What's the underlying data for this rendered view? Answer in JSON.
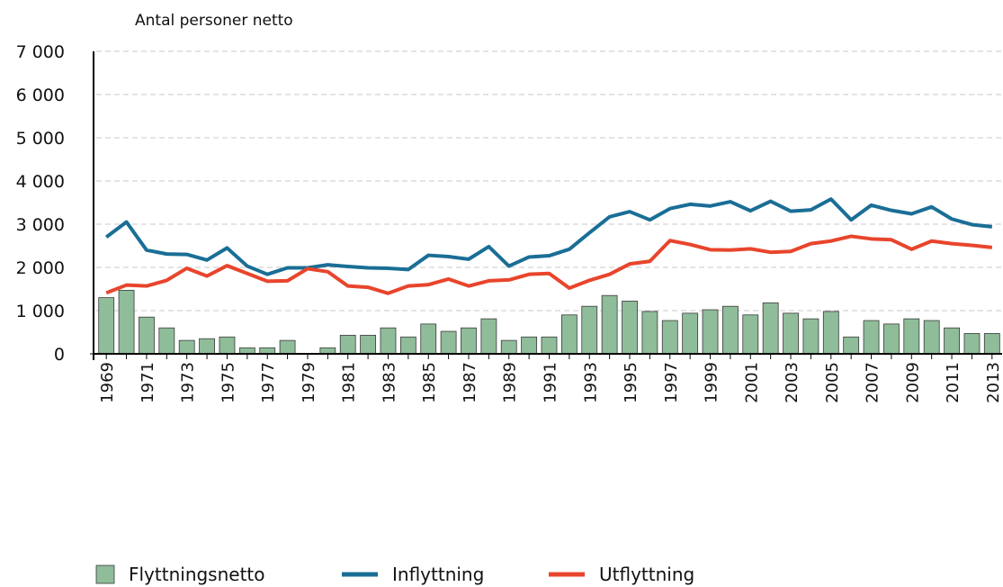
{
  "chart_data": {
    "type": "bar",
    "y_label": "Antal personer netto",
    "categories": [
      "1969",
      null,
      "1971",
      null,
      "1973",
      null,
      "1975",
      null,
      "1977",
      null,
      "1979",
      null,
      "1981",
      null,
      "1983",
      null,
      "1985",
      null,
      "1987",
      null,
      "1989",
      null,
      "1991",
      null,
      "1993",
      null,
      "1995",
      null,
      "1997",
      null,
      "1999",
      null,
      "2001",
      null,
      "2003",
      null,
      "2005",
      null,
      "2007",
      null,
      "2009",
      null,
      "2011",
      null,
      "2013"
    ],
    "series": [
      {
        "name": "Flyttningsnetto",
        "type": "bar",
        "color": "#8fbc99",
        "values": [
          1300,
          1470,
          850,
          600,
          310,
          350,
          390,
          140,
          140,
          310,
          0,
          140,
          430,
          430,
          600,
          390,
          690,
          520,
          600,
          810,
          310,
          390,
          390,
          900,
          1100,
          1350,
          1220,
          980,
          770,
          940,
          1020,
          1100,
          900,
          1180,
          940,
          810,
          980,
          390,
          770,
          690,
          810,
          770,
          600,
          470,
          470
        ]
      },
      {
        "name": "Inflyttning",
        "type": "line",
        "color": "#1a6e96",
        "values": [
          2700,
          3050,
          2400,
          2310,
          2300,
          2170,
          2450,
          2030,
          1840,
          1990,
          1990,
          2060,
          2020,
          1990,
          1980,
          1950,
          2280,
          2250,
          2190,
          2480,
          2030,
          2240,
          2270,
          2420,
          2800,
          3170,
          3290,
          3100,
          3360,
          3460,
          3420,
          3520,
          3310,
          3530,
          3300,
          3330,
          3580,
          3100,
          3440,
          3320,
          3240,
          3400,
          3120,
          2990,
          2940
        ]
      },
      {
        "name": "Utflyttning",
        "type": "line",
        "color": "#e8452c",
        "values": [
          1410,
          1590,
          1570,
          1700,
          1980,
          1800,
          2040,
          1860,
          1680,
          1690,
          1970,
          1900,
          1570,
          1540,
          1400,
          1570,
          1600,
          1730,
          1570,
          1690,
          1710,
          1840,
          1860,
          1520,
          1700,
          1840,
          2080,
          2140,
          2620,
          2530,
          2410,
          2400,
          2430,
          2350,
          2370,
          2550,
          2610,
          2720,
          2660,
          2640,
          2420,
          2610,
          2550,
          2510,
          2460
        ]
      }
    ],
    "ylim": [
      0,
      7000
    ],
    "yticks": [
      0,
      {
        "value": 1000,
        "label": "1 000"
      },
      {
        "value": 2000,
        "label": "2 000"
      },
      {
        "value": 3000,
        "label": "3 000"
      },
      {
        "value": 4000,
        "label": "4 000"
      },
      {
        "value": 5000,
        "label": "5 000"
      },
      {
        "value": 6000,
        "label": "6 000"
      },
      {
        "value": 7000,
        "label": "7 000"
      }
    ],
    "grid": true,
    "legend": "bottom"
  }
}
